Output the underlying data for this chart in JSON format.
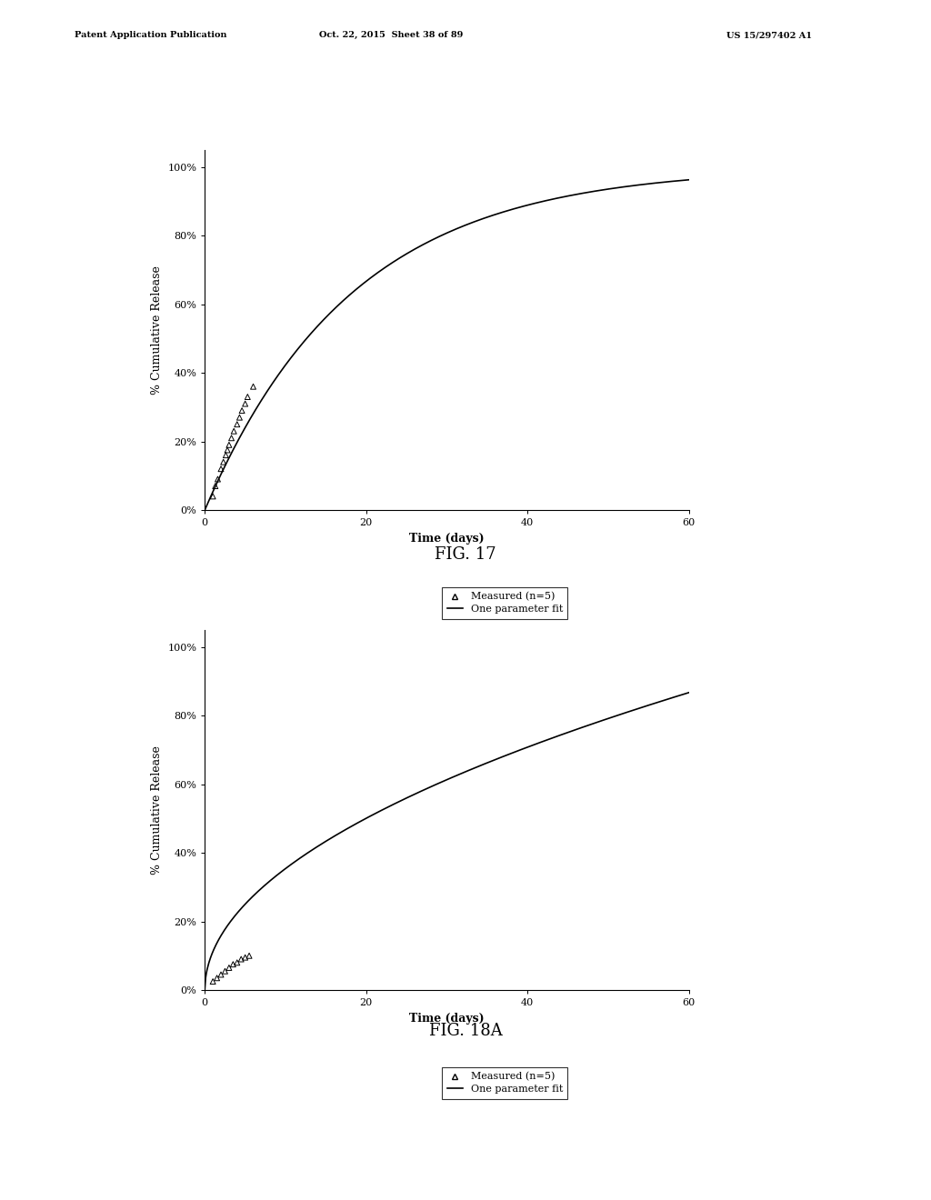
{
  "fig_width": 10.24,
  "fig_height": 13.2,
  "background_color": "#ffffff",
  "plot1": {
    "xlabel": "Time (days)",
    "ylabel": "% Cumulative Release",
    "xlim": [
      0,
      60
    ],
    "ylim": [
      0,
      1.05
    ],
    "yticks": [
      0,
      0.2,
      0.4,
      0.6,
      0.8,
      1.0
    ],
    "ytick_labels": [
      "0%",
      "20%",
      "40%",
      "60%",
      "80%",
      "100%"
    ],
    "xticks": [
      0,
      20,
      40,
      60
    ],
    "fig_label": "FIG. 17",
    "curve_k": 0.055,
    "curve_type": "exponential_saturation",
    "measured_points": [
      [
        1.0,
        0.04
      ],
      [
        1.3,
        0.07
      ],
      [
        1.6,
        0.09
      ],
      [
        2.0,
        0.12
      ],
      [
        2.3,
        0.14
      ],
      [
        2.6,
        0.16
      ],
      [
        2.8,
        0.175
      ],
      [
        3.0,
        0.19
      ],
      [
        3.3,
        0.21
      ],
      [
        3.6,
        0.23
      ],
      [
        4.0,
        0.25
      ],
      [
        4.3,
        0.27
      ],
      [
        4.6,
        0.29
      ],
      [
        5.0,
        0.31
      ],
      [
        5.3,
        0.33
      ],
      [
        6.0,
        0.36
      ]
    ]
  },
  "plot2": {
    "xlabel": "Time (days)",
    "ylabel": "% Cumulative Release",
    "xlim": [
      0,
      60
    ],
    "ylim": [
      0,
      1.05
    ],
    "yticks": [
      0,
      0.2,
      0.4,
      0.6,
      0.8,
      1.0
    ],
    "ytick_labels": [
      "0%",
      "20%",
      "40%",
      "60%",
      "80%",
      "100%"
    ],
    "xticks": [
      0,
      20,
      40,
      60
    ],
    "fig_label": "FIG. 18A",
    "curve_k": 0.112,
    "curve_exponent": 0.5,
    "curve_type": "power_law",
    "measured_points": [
      [
        1.0,
        0.025
      ],
      [
        1.5,
        0.035
      ],
      [
        2.0,
        0.045
      ],
      [
        2.5,
        0.055
      ],
      [
        3.0,
        0.065
      ],
      [
        3.5,
        0.075
      ],
      [
        4.0,
        0.08
      ],
      [
        4.5,
        0.09
      ],
      [
        5.0,
        0.095
      ],
      [
        5.5,
        0.1
      ]
    ]
  },
  "legend_label_measured": "Measured (n=5)",
  "legend_label_fit": "One parameter fit",
  "marker_color": "#000000",
  "line_color": "#000000",
  "font_size_axis_label": 9,
  "font_size_tick": 8,
  "font_size_fig_label": 13,
  "font_size_legend": 8,
  "font_size_header": 7,
  "header_left": "Patent Application Publication",
  "header_mid": "Oct. 22, 2015  Sheet 38 of 89",
  "header_right": "US 15/297402 A1"
}
